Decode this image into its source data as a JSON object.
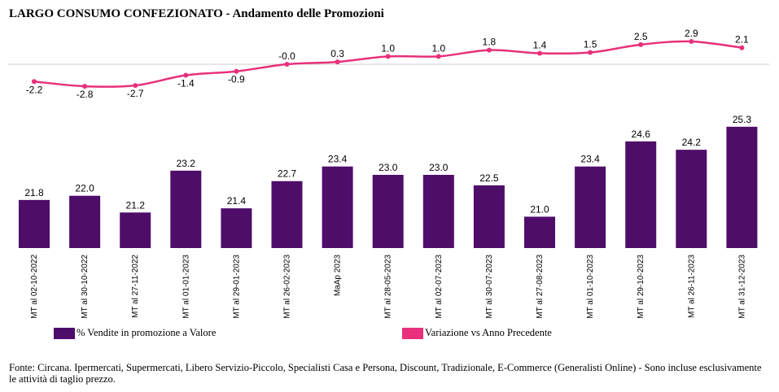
{
  "title": "LARGO CONSUMO CONFEZIONATO - Andamento delle Promozioni",
  "legend": {
    "bar_label": "% Vendite in promozione a Valore",
    "line_label": "Variazione vs Anno Precedente"
  },
  "colors": {
    "bar": "#4f0d6a",
    "line": "#e8307c",
    "baseline": "#cccccc"
  },
  "footer": "Fonte: Circana. Ipermercati, Supermercati, Libero Servizio-Piccolo, Specialisti Casa e Persona, Discount, Tradizionale, E-Commerce (Generalisti Online) - Sono incluse esclusivamente le attività di taglio prezzo.",
  "chart_data": {
    "type": "bar",
    "categories": [
      "MT al 02-10-2022",
      "MT al 30-10-2022",
      "MT al 27-11-2022",
      "MT al 01-01-2023",
      "MT al 29-01-2023",
      "MT al 26-02-2023",
      "MaAp 2023",
      "MT al 28-05-2023",
      "MT al 02-07-2023",
      "MT al 30-07-2023",
      "MT al 27-08-2023",
      "MT al 01-10-2023",
      "MT al 29-10-2023",
      "MT al 26-11-2023",
      "MT al 31-12-2023"
    ],
    "series": [
      {
        "name": "% Vendite in promozione a Valore",
        "type": "bar",
        "values": [
          21.8,
          22.0,
          21.2,
          23.2,
          21.4,
          22.7,
          23.4,
          23.0,
          23.0,
          22.5,
          21.0,
          23.4,
          24.6,
          24.2,
          25.3
        ],
        "labels": [
          "21.8",
          "22.0",
          "21.2",
          "23.2",
          "21.4",
          "22.7",
          "23.4",
          "23.0",
          "23.0",
          "22.5",
          "21.0",
          "23.4",
          "24.6",
          "24.2",
          "25.3"
        ]
      },
      {
        "name": "Variazione vs Anno Precedente",
        "type": "line",
        "values": [
          -2.2,
          -2.8,
          -2.7,
          -1.4,
          -0.9,
          -0.0,
          0.3,
          1.0,
          1.0,
          1.8,
          1.4,
          1.5,
          2.5,
          2.9,
          2.1
        ],
        "labels": [
          "-2.2",
          "-2.8",
          "-2.7",
          "-1.4",
          "-0.9",
          "-0.0",
          "0.3",
          "1.0",
          "1.0",
          "1.8",
          "1.4",
          "1.5",
          "2.5",
          "2.9",
          "2.1"
        ]
      }
    ],
    "bar_ylim": [
      19.5,
      26.5
    ],
    "line_ylim": [
      -3,
      3
    ],
    "grid": false,
    "legend_position": "bottom"
  }
}
